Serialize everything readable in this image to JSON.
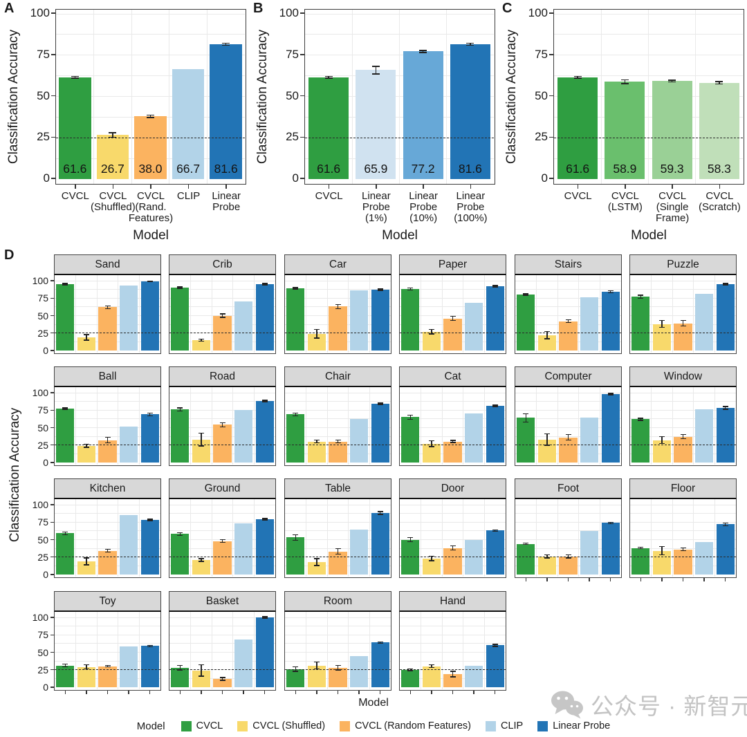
{
  "chart_data": [
    {
      "id": "A",
      "type": "bar",
      "panel_label": "A",
      "title": "",
      "ylabel": "Classification Accuracy",
      "xlabel": "Model",
      "ylim": [
        0,
        100
      ],
      "yticks": [
        0,
        25,
        50,
        75,
        100
      ],
      "chance_line": 25,
      "grid": true,
      "categories": [
        "CVCL",
        "CVCL (Shuffled)",
        "CVCL (Rand. Features)",
        "CLIP",
        "Linear Probe"
      ],
      "tick_lines": [
        [
          "CVCL"
        ],
        [
          "CVCL",
          "(Shuffled)"
        ],
        [
          "CVCL",
          "(Rand.",
          "Features)"
        ],
        [
          "CLIP"
        ],
        [
          "Linear",
          "Probe"
        ]
      ],
      "values": [
        61.6,
        26.7,
        38.0,
        66.7,
        81.6
      ],
      "errors": [
        0.5,
        1.3,
        0.8,
        null,
        0.6
      ],
      "value_labels": [
        "61.6",
        "26.7",
        "38.0",
        "66.7",
        "81.6"
      ],
      "colors": [
        "#2f9e41",
        "#f8d96b",
        "#fbb360",
        "#b2d3e8",
        "#2274b5"
      ]
    },
    {
      "id": "B",
      "type": "bar",
      "panel_label": "B",
      "title": "",
      "ylabel": "Classification Accuracy",
      "xlabel": "Model",
      "ylim": [
        0,
        100
      ],
      "yticks": [
        0,
        25,
        50,
        75,
        100
      ],
      "chance_line": 25,
      "grid": true,
      "categories": [
        "CVCL",
        "Linear Probe (1%)",
        "Linear Probe (10%)",
        "Linear Probe (100%)"
      ],
      "tick_lines": [
        [
          "CVCL"
        ],
        [
          "Linear",
          "Probe",
          "(1%)"
        ],
        [
          "Linear",
          "Probe",
          "(10%)"
        ],
        [
          "Linear",
          "Probe",
          "(100%)"
        ]
      ],
      "values": [
        61.6,
        65.9,
        77.2,
        81.6
      ],
      "errors": [
        0.5,
        2.2,
        0.7,
        0.7
      ],
      "value_labels": [
        "61.6",
        "65.9",
        "77.2",
        "81.6"
      ],
      "colors": [
        "#2f9e41",
        "#d0e2f0",
        "#67a8d7",
        "#2274b5"
      ]
    },
    {
      "id": "C",
      "type": "bar",
      "panel_label": "C",
      "title": "",
      "ylabel": "Classification Accuracy",
      "xlabel": "Model",
      "ylim": [
        0,
        100
      ],
      "yticks": [
        0,
        25,
        50,
        75,
        100
      ],
      "chance_line": 25,
      "grid": true,
      "categories": [
        "CVCL",
        "CVCL (LSTM)",
        "CVCL (Single Frame)",
        "CVCL (Scratch)"
      ],
      "tick_lines": [
        [
          "CVCL"
        ],
        [
          "CVCL",
          "(LSTM)"
        ],
        [
          "CVCL",
          "(Single",
          "Frame)"
        ],
        [
          "CVCL",
          "(Scratch)"
        ]
      ],
      "values": [
        61.6,
        58.9,
        59.3,
        58.3
      ],
      "errors": [
        0.5,
        1.2,
        0.5,
        0.8
      ],
      "value_labels": [
        "61.6",
        "58.9",
        "59.3",
        "58.3"
      ],
      "colors": [
        "#2f9e41",
        "#6abf6d",
        "#9ad096",
        "#c0dfb9"
      ]
    },
    {
      "id": "D",
      "type": "bar",
      "panel_label": "D",
      "faceted": true,
      "title": "",
      "ylabel": "Classification Accuracy",
      "xlabel": "Model",
      "ylim": [
        0,
        100
      ],
      "yticks": [
        0,
        25,
        50,
        75,
        100
      ],
      "chance_line": 25,
      "grid": true,
      "series": [
        {
          "name": "CVCL",
          "color": "#2f9e41"
        },
        {
          "name": "CVCL (Shuffled)",
          "color": "#f8d96b"
        },
        {
          "name": "CVCL (Random Features)",
          "color": "#fbb360"
        },
        {
          "name": "CLIP",
          "color": "#b2d3e8"
        },
        {
          "name": "Linear Probe",
          "color": "#2274b5"
        }
      ],
      "facets": [
        {
          "title": "Sand",
          "values": [
            95,
            19,
            62,
            93,
            99
          ],
          "errors": [
            1,
            4,
            2,
            null,
            0.7
          ]
        },
        {
          "title": "Crib",
          "values": [
            90,
            15,
            50,
            70,
            95
          ],
          "errors": [
            1,
            1.5,
            2.5,
            null,
            1
          ]
        },
        {
          "title": "Car",
          "values": [
            89,
            24,
            63,
            86,
            87
          ],
          "errors": [
            1,
            6,
            3,
            null,
            1
          ]
        },
        {
          "title": "Paper",
          "values": [
            88,
            27,
            46,
            68,
            92
          ],
          "errors": [
            1.5,
            3,
            3,
            null,
            1
          ]
        },
        {
          "title": "Stairs",
          "values": [
            80,
            22,
            42,
            76,
            84
          ],
          "errors": [
            1,
            5,
            2,
            null,
            1.5
          ]
        },
        {
          "title": "Puzzle",
          "values": [
            77,
            38,
            39,
            81,
            95
          ],
          "errors": [
            2,
            5,
            4,
            null,
            1
          ]
        },
        {
          "title": "Ball",
          "values": [
            77,
            24,
            32,
            51,
            69
          ],
          "errors": [
            1,
            2,
            4,
            null,
            2
          ]
        },
        {
          "title": "Road",
          "values": [
            76,
            33,
            54,
            75,
            88
          ],
          "errors": [
            2,
            9,
            3,
            null,
            1
          ]
        },
        {
          "title": "Chair",
          "values": [
            69,
            30,
            30,
            62,
            84
          ],
          "errors": [
            2,
            2,
            2,
            null,
            1
          ]
        },
        {
          "title": "Cat",
          "values": [
            65,
            27,
            30,
            70,
            81
          ],
          "errors": [
            3,
            4,
            1.5,
            null,
            1
          ]
        },
        {
          "title": "Computer",
          "values": [
            64,
            33,
            36,
            64,
            98
          ],
          "errors": [
            6,
            8,
            4,
            null,
            1
          ]
        },
        {
          "title": "Window",
          "values": [
            62,
            32,
            37,
            76,
            78
          ],
          "errors": [
            1.5,
            5,
            3,
            null,
            2
          ]
        },
        {
          "title": "Kitchen",
          "values": [
            59,
            19,
            34,
            85,
            78
          ],
          "errors": [
            2,
            5,
            2,
            null,
            1
          ]
        },
        {
          "title": "Ground",
          "values": [
            58,
            21,
            48,
            73,
            79
          ],
          "errors": [
            2,
            2,
            2,
            null,
            1
          ]
        },
        {
          "title": "Table",
          "values": [
            53,
            18,
            33,
            64,
            88
          ],
          "errors": [
            4,
            5,
            4,
            null,
            2
          ]
        },
        {
          "title": "Door",
          "values": [
            50,
            23,
            38,
            50,
            63
          ],
          "errors": [
            3,
            3,
            3,
            null,
            1
          ]
        },
        {
          "title": "Foot",
          "values": [
            44,
            26,
            26,
            62,
            74
          ],
          "errors": [
            1,
            2,
            2,
            null,
            1
          ]
        },
        {
          "title": "Floor",
          "values": [
            38,
            34,
            36,
            47,
            72
          ],
          "errors": [
            1,
            6,
            2,
            null,
            2
          ]
        },
        {
          "title": "Toy",
          "values": [
            31,
            29,
            30,
            58,
            59
          ],
          "errors": [
            2,
            3,
            1,
            null,
            1
          ]
        },
        {
          "title": "Basket",
          "values": [
            28,
            24,
            12,
            68,
            100
          ],
          "errors": [
            3,
            8,
            2,
            null,
            1
          ]
        },
        {
          "title": "Room",
          "values": [
            26,
            31,
            28,
            45,
            64
          ],
          "errors": [
            3,
            5,
            3,
            null,
            1
          ]
        },
        {
          "title": "Hand",
          "values": [
            25,
            30,
            19,
            31,
            60
          ],
          "errors": [
            1,
            2,
            4,
            null,
            1.5
          ]
        }
      ]
    }
  ],
  "legend": {
    "title": "Model",
    "items": [
      {
        "label": "CVCL",
        "color": "#2f9e41"
      },
      {
        "label": "CVCL (Shuffled)",
        "color": "#f8d96b"
      },
      {
        "label": "CVCL (Random Features)",
        "color": "#fbb360"
      },
      {
        "label": "CLIP",
        "color": "#b2d3e8"
      },
      {
        "label": "Linear Probe",
        "color": "#2274b5"
      }
    ]
  },
  "watermark": {
    "text": "公众号 · 新智元"
  },
  "style_colors": {
    "grid": "#e9e9e9",
    "plot_border": "#3c3c3c",
    "facet_header_bg": "#d8d8d8",
    "dashed_line": "#2b2b2b",
    "error_bar": "#222222",
    "watermark_gray": "#c3c3c3"
  }
}
